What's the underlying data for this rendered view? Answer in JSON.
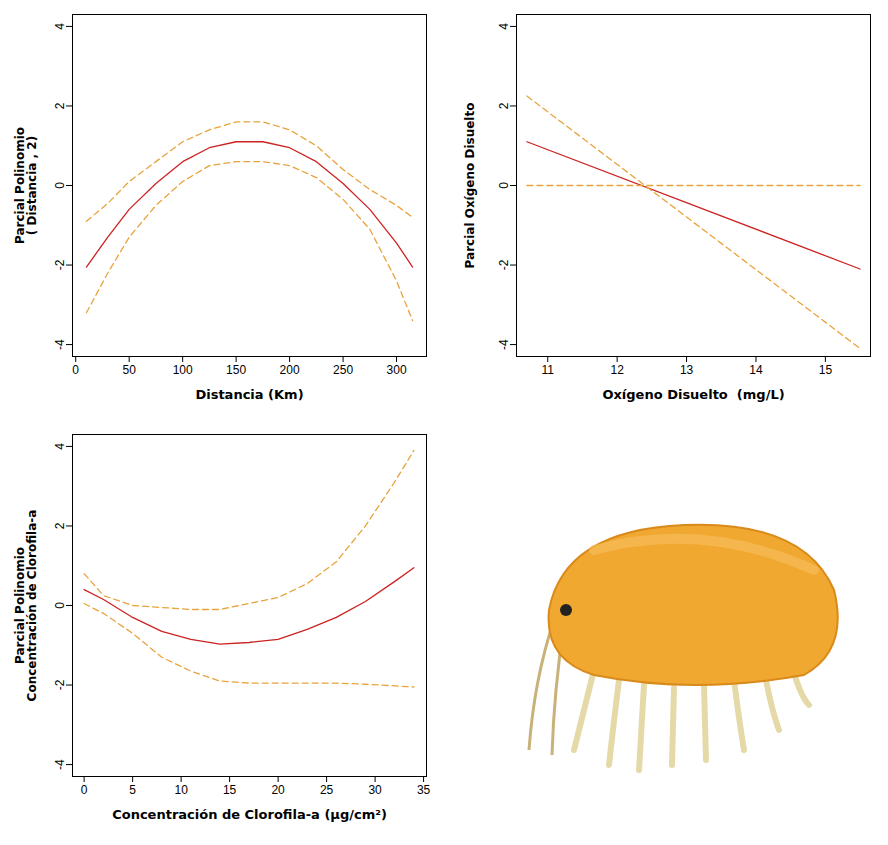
{
  "chart_data": [
    {
      "type": "line",
      "ylabel": "Parcial Polinomio\n( Distancia , 2)",
      "xlabel": "Distancia (Km)",
      "x": [
        10,
        30,
        50,
        75,
        100,
        125,
        150,
        175,
        200,
        225,
        250,
        275,
        300,
        315
      ],
      "series": [
        {
          "color": "#cc2222",
          "line_style": "solid",
          "values": [
            -2.05,
            -1.3,
            -0.6,
            0.05,
            0.6,
            0.95,
            1.1,
            1.1,
            0.95,
            0.6,
            0.05,
            -0.6,
            -1.45,
            -2.05
          ]
        },
        {
          "color": "#e8a33c",
          "line_style": "dashed",
          "values": [
            -0.9,
            -0.45,
            0.1,
            0.6,
            1.1,
            1.4,
            1.6,
            1.6,
            1.4,
            1.0,
            0.4,
            -0.1,
            -0.5,
            -0.8
          ]
        },
        {
          "color": "#e8a33c",
          "line_style": "dashed",
          "values": [
            -3.2,
            -2.2,
            -1.3,
            -0.5,
            0.1,
            0.5,
            0.6,
            0.6,
            0.5,
            0.2,
            -0.35,
            -1.1,
            -2.4,
            -3.4
          ]
        }
      ],
      "xlim": [
        -3,
        328
      ],
      "xticks": [
        0,
        50,
        100,
        150,
        200,
        250,
        300
      ],
      "ylim": [
        -4.3,
        4.3
      ],
      "yticks": [
        -4,
        -2,
        0,
        2,
        4
      ],
      "grid": false
    },
    {
      "type": "line",
      "ylabel": "Parcial Oxígeno Disuelto",
      "xlabel": "Oxígeno Disuelto  (mg/L)",
      "x": [
        10.7,
        15.5
      ],
      "series": [
        {
          "color": "#cc2222",
          "line_style": "solid",
          "values": [
            1.1,
            -2.1
          ]
        },
        {
          "color": "#e8a33c",
          "line_style": "dashed",
          "values": [
            2.25,
            -4.1
          ]
        },
        {
          "color": "#e8a33c",
          "line_style": "dashed",
          "values": [
            0,
            0
          ]
        }
      ],
      "xlim": [
        10.55,
        15.65
      ],
      "xticks": [
        11,
        12,
        13,
        14,
        15
      ],
      "ylim": [
        -4.3,
        4.3
      ],
      "yticks": [
        -4,
        -2,
        0,
        2,
        4
      ],
      "grid": false
    },
    {
      "type": "line",
      "ylabel": "Parcial Polinomio\nConcentración de Clorofila-a",
      "xlabel": "Concentración de Clorofila-a (μg/cm²)",
      "x": [
        0,
        2,
        5,
        8,
        11,
        14,
        17,
        20,
        23,
        26,
        29,
        32,
        34
      ],
      "series": [
        {
          "color": "#cc2222",
          "line_style": "solid",
          "values": [
            0.4,
            0.15,
            -0.3,
            -0.65,
            -0.85,
            -0.97,
            -0.93,
            -0.85,
            -0.6,
            -0.3,
            0.1,
            0.6,
            0.95
          ]
        },
        {
          "color": "#e8a33c",
          "line_style": "dashed",
          "values": [
            0.8,
            0.25,
            0.0,
            -0.05,
            -0.1,
            -0.1,
            0.05,
            0.2,
            0.55,
            1.1,
            2.0,
            3.1,
            3.9
          ]
        },
        {
          "color": "#e8a33c",
          "line_style": "dashed",
          "values": [
            0.05,
            -0.2,
            -0.7,
            -1.3,
            -1.65,
            -1.9,
            -1.95,
            -1.95,
            -1.95,
            -1.95,
            -1.98,
            -2.02,
            -2.05
          ]
        }
      ],
      "xlim": [
        -1.2,
        35.3
      ],
      "xticks": [
        0,
        5,
        10,
        15,
        20,
        25,
        30,
        35
      ],
      "ylim": [
        -4.3,
        4.3
      ],
      "yticks": [
        -4,
        -2,
        0,
        2,
        4
      ],
      "grid": false
    }
  ]
}
